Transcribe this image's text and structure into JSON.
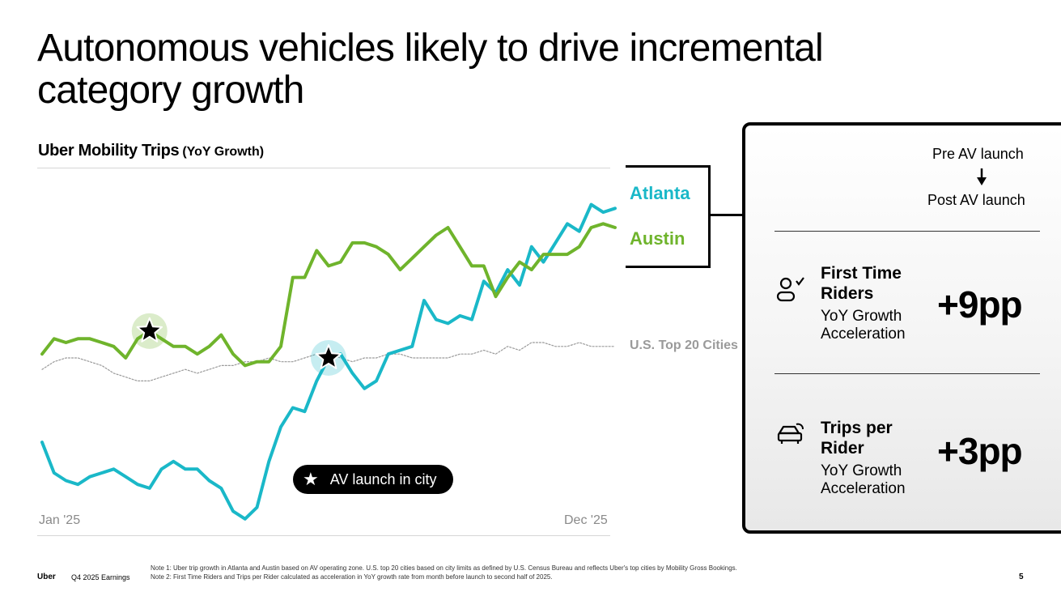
{
  "slide": {
    "title": "Autonomous vehicles likely to drive incremental category growth"
  },
  "chart_data": {
    "type": "line",
    "title": "Uber Mobility Trips",
    "subtitle": "(YoY Growth)",
    "x_start_label": "Jan '25",
    "x_end_label": "Dec '25",
    "x": [
      0,
      1,
      2,
      3,
      4,
      5,
      6,
      7,
      8,
      9,
      10,
      11,
      12,
      13,
      14,
      15,
      16,
      17,
      18,
      19,
      20,
      21,
      22,
      23,
      24,
      25,
      26,
      27,
      28,
      29,
      30,
      31,
      32,
      33,
      34,
      35,
      36,
      37,
      38,
      39,
      40,
      41,
      42,
      43,
      44,
      45,
      46,
      47,
      48
    ],
    "series": [
      {
        "name": "Atlanta",
        "color": "#1ab8c8",
        "line_width": 4,
        "values": [
          15,
          7,
          5,
          4,
          6,
          7,
          8,
          6,
          4,
          3,
          8,
          10,
          8,
          8,
          5,
          3,
          -3,
          -5,
          -2,
          10,
          19,
          24,
          23,
          31,
          37,
          38,
          33,
          29,
          31,
          38,
          39,
          40,
          52,
          47,
          46,
          48,
          47,
          57,
          54,
          60,
          56,
          66,
          62,
          67,
          72,
          70,
          77,
          75,
          76
        ]
      },
      {
        "name": "Austin",
        "color": "#6fb42c",
        "line_width": 4,
        "values": [
          38,
          42,
          41,
          42,
          42,
          41,
          40,
          37,
          42,
          44,
          42,
          40,
          40,
          38,
          40,
          43,
          38,
          35,
          36,
          36,
          40,
          58,
          58,
          65,
          61,
          62,
          67,
          67,
          66,
          64,
          60,
          63,
          66,
          69,
          71,
          66,
          61,
          61,
          53,
          58,
          62,
          60,
          64,
          64,
          64,
          66,
          71,
          72,
          71
        ]
      },
      {
        "name": "U.S. Top 20 Cities",
        "color": "#9a9a9a",
        "line_width": 1.2,
        "dashed": true,
        "values": [
          34,
          36,
          37,
          37,
          36,
          35,
          33,
          32,
          31,
          31,
          32,
          33,
          34,
          33,
          34,
          35,
          35,
          36,
          36,
          37,
          36,
          36,
          37,
          38,
          38,
          37,
          36,
          37,
          37,
          38,
          38,
          37,
          37,
          37,
          37,
          38,
          38,
          39,
          38,
          40,
          39,
          41,
          41,
          40,
          40,
          41,
          40,
          40,
          40
        ]
      }
    ],
    "markers": [
      {
        "series": "Austin",
        "x": 9
      },
      {
        "series": "Atlanta",
        "x": 24
      }
    ],
    "marker_label": "AV launch in city",
    "legend": "right",
    "grid": false,
    "ylim": [
      -8,
      86
    ]
  },
  "side_panel": {
    "pre_label": "Pre AV launch",
    "post_label": "Post AV launch",
    "metrics": [
      {
        "title": "First Time Riders",
        "subtitle": "YoY Growth Acceleration",
        "value": "+9pp",
        "icon": "rider-check-icon"
      },
      {
        "title": "Trips per Rider",
        "subtitle": "YoY Growth Acceleration",
        "value": "+3pp",
        "icon": "autonomous-car-icon"
      }
    ]
  },
  "footer": {
    "brand": "Uber",
    "report": "Q4 2025 Earnings",
    "note1": "Note 1: Uber trip growth in Atlanta and Austin based on AV operating zone. U.S. top 20 cities based on city limits as defined by U.S. Census Bureau and reflects Uber's top cities by Mobility Gross Bookings.",
    "note2": "Note 2: First Time Riders and Trips per Rider calculated as acceleration in YoY growth rate from month before launch to second half of 2025.",
    "page": "5"
  }
}
